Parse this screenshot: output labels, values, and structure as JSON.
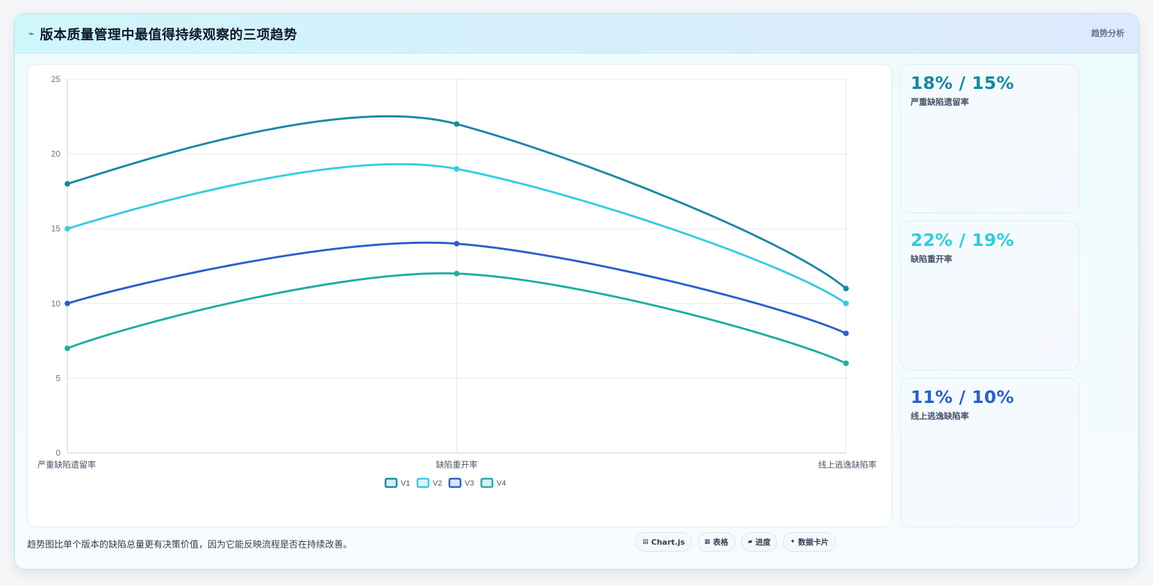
{
  "header": {
    "icon": "⌁",
    "title": "版本质量管理中最值得持续观察的三项趋势",
    "tag": "趋势分析"
  },
  "chart_data": {
    "type": "line",
    "categories": [
      "严重缺陷遗留率",
      "缺陷重开率",
      "线上逃逸缺陷率"
    ],
    "ylim": [
      0,
      25
    ],
    "yticks": [
      0,
      5,
      10,
      15,
      20,
      25
    ],
    "grid": true,
    "legend_position": "bottom",
    "series": [
      {
        "name": "V1",
        "values": [
          18,
          22,
          11
        ],
        "color": "#168aa3",
        "fill": "#d5f0f4"
      },
      {
        "name": "V2",
        "values": [
          15,
          19,
          10
        ],
        "color": "#35cde0",
        "fill": "#d9f6fa"
      },
      {
        "name": "V3",
        "values": [
          10,
          14,
          8
        ],
        "color": "#2b5fd0",
        "fill": "#dce5fa"
      },
      {
        "name": "V4",
        "values": [
          7,
          12,
          6
        ],
        "color": "#1fada3",
        "fill": "#d7f0ee"
      }
    ]
  },
  "stats": [
    {
      "value": "18% / 15%",
      "label": "严重缺陷遗留率",
      "color": "#138aa5"
    },
    {
      "value": "22% / 19%",
      "label": "缺陷重开率",
      "color": "#2fcde0"
    },
    {
      "value": "11% / 10%",
      "label": "线上逃逸缺陷率",
      "color": "#2a5fd0"
    }
  ],
  "footer": {
    "note": "趋势图比单个版本的缺陷总量更有决策价值，因为它能反映流程是否在持续改善。",
    "chips": [
      {
        "icon": "▤",
        "label": "Chart.js"
      },
      {
        "icon": "▦",
        "label": "表格"
      },
      {
        "icon": "▰",
        "label": "进度"
      },
      {
        "icon": "✦",
        "label": "数据卡片"
      }
    ]
  }
}
